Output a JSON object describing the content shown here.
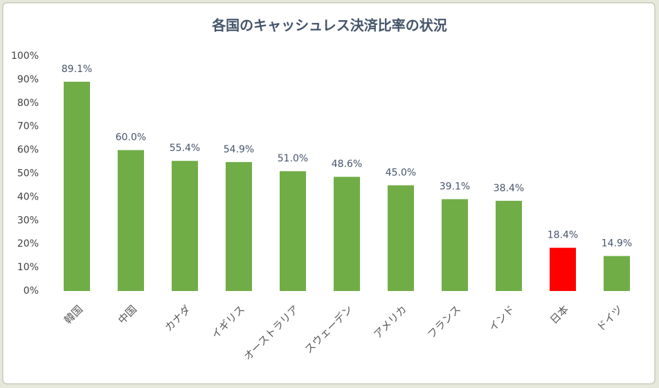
{
  "chart_data": {
    "type": "bar",
    "title": "各国のキャッシュレス決済比率の状況",
    "categories": [
      "韓国",
      "中国",
      "カナダ",
      "イギリス",
      "オーストラリア",
      "スウェーデン",
      "アメリカ",
      "フランス",
      "インド",
      "日本",
      "ドイツ"
    ],
    "values": [
      89.1,
      60.0,
      55.4,
      54.9,
      51.0,
      48.6,
      45.0,
      39.1,
      38.4,
      18.4,
      14.9
    ],
    "value_labels": [
      "89.1%",
      "60.0%",
      "55.4%",
      "54.9%",
      "51.0%",
      "48.6%",
      "45.0%",
      "39.1%",
      "38.4%",
      "18.4%",
      "14.9%"
    ],
    "colors": [
      "#70ad47",
      "#70ad47",
      "#70ad47",
      "#70ad47",
      "#70ad47",
      "#70ad47",
      "#70ad47",
      "#70ad47",
      "#70ad47",
      "#ff0000",
      "#70ad47"
    ],
    "ylim": [
      0,
      100
    ],
    "yticks": [
      {
        "value": 0,
        "label": "0%"
      },
      {
        "value": 10,
        "label": "10%"
      },
      {
        "value": 20,
        "label": "20%"
      },
      {
        "value": 30,
        "label": "30%"
      },
      {
        "value": 40,
        "label": "40%"
      },
      {
        "value": 50,
        "label": "50%"
      },
      {
        "value": 60,
        "label": "60%"
      },
      {
        "value": 70,
        "label": "70%"
      },
      {
        "value": 80,
        "label": "80%"
      },
      {
        "value": 90,
        "label": "90%"
      },
      {
        "value": 100,
        "label": "100%"
      }
    ]
  }
}
